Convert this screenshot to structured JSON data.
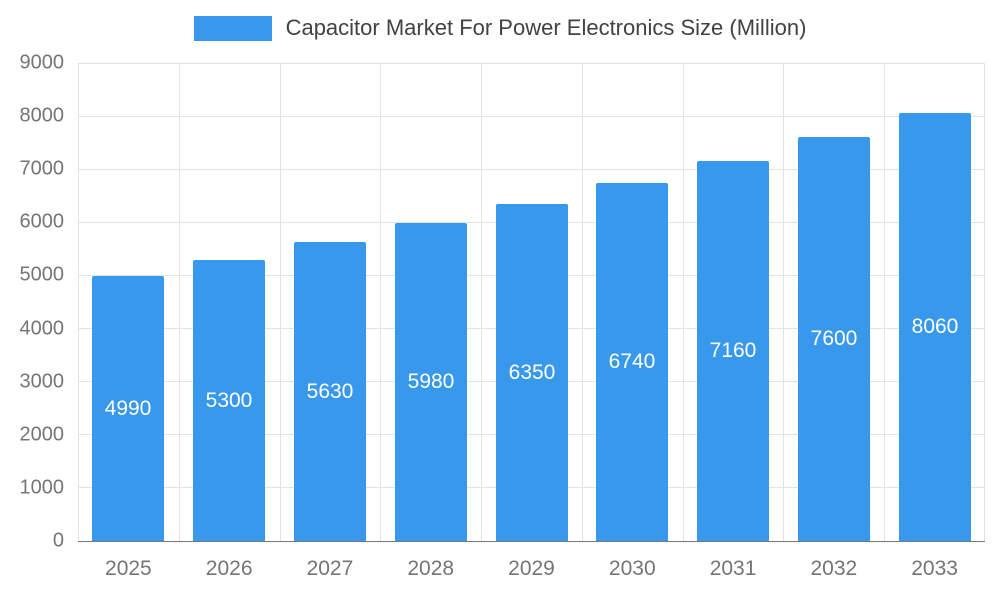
{
  "chart_data": {
    "type": "bar",
    "title": "Capacitor Market For Power Electronics Size (Million)",
    "categories": [
      "2025",
      "2026",
      "2027",
      "2028",
      "2029",
      "2030",
      "2031",
      "2032",
      "2033"
    ],
    "values": [
      4990,
      5300,
      5630,
      5980,
      6350,
      6740,
      7160,
      7600,
      8060
    ],
    "xlabel": "",
    "ylabel": "",
    "ylim": [
      0,
      9000
    ],
    "ytick_step": 1000,
    "ytick_labels": [
      "0",
      "1000",
      "2000",
      "3000",
      "4000",
      "5000",
      "6000",
      "7000",
      "8000",
      "9000"
    ],
    "grid": true,
    "legend_position": "top",
    "bar_color": "#3898ec",
    "value_label_color": "#ffffff",
    "value_label_position": "inside-middle",
    "axis_label_color": "#757575",
    "title_color": "#424242",
    "gridline_color": "#e3e3e3"
  }
}
